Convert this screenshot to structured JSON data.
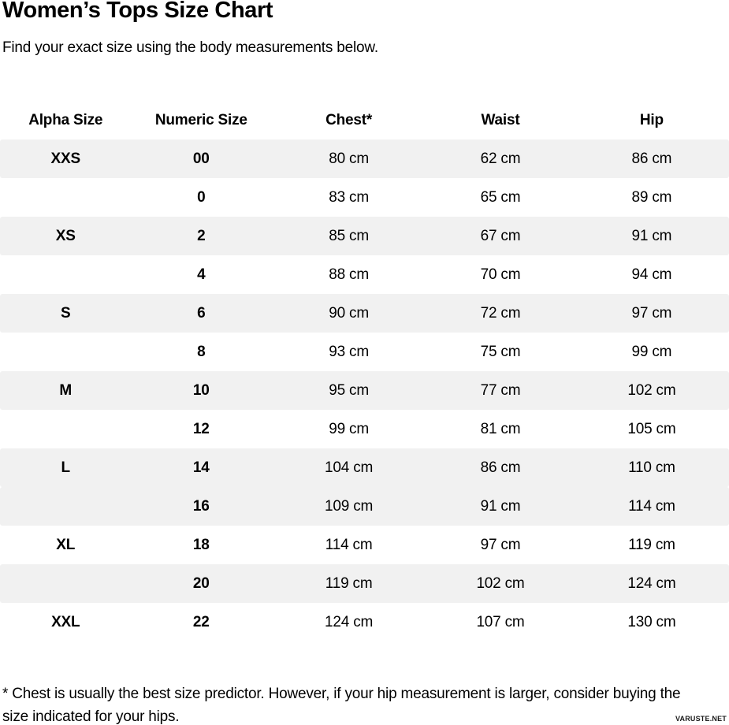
{
  "header": {
    "title": "Women’s Tops Size Chart",
    "subtitle": "Find your exact size using the body measurements below."
  },
  "size_chart": {
    "columns": [
      "Alpha Size",
      "Numeric Size",
      "Chest*",
      "Waist",
      "Hip"
    ],
    "rows": [
      {
        "alpha": "XXS",
        "numeric": "00",
        "chest": "80 cm",
        "waist": "62 cm",
        "hip": "86 cm",
        "shaded": true
      },
      {
        "alpha": "",
        "numeric": "0",
        "chest": "83 cm",
        "waist": "65 cm",
        "hip": "89 cm",
        "shaded": false
      },
      {
        "alpha": "XS",
        "numeric": "2",
        "chest": "85 cm",
        "waist": "67 cm",
        "hip": "91 cm",
        "shaded": true
      },
      {
        "alpha": "",
        "numeric": "4",
        "chest": "88 cm",
        "waist": "70 cm",
        "hip": "94 cm",
        "shaded": false
      },
      {
        "alpha": "S",
        "numeric": "6",
        "chest": "90 cm",
        "waist": "72 cm",
        "hip": "97 cm",
        "shaded": true
      },
      {
        "alpha": "",
        "numeric": "8",
        "chest": "93 cm",
        "waist": "75 cm",
        "hip": "99 cm",
        "shaded": false
      },
      {
        "alpha": "M",
        "numeric": "10",
        "chest": "95 cm",
        "waist": "77 cm",
        "hip": "102 cm",
        "shaded": true
      },
      {
        "alpha": "",
        "numeric": "12",
        "chest": "99 cm",
        "waist": "81 cm",
        "hip": "105 cm",
        "shaded": false
      },
      {
        "alpha": "L",
        "numeric": "14",
        "chest": "104 cm",
        "waist": "86 cm",
        "hip": "110 cm",
        "shaded": true
      },
      {
        "alpha": "",
        "numeric": "16",
        "chest": "109 cm",
        "waist": "91 cm",
        "hip": "114 cm",
        "shaded": true
      },
      {
        "alpha": "XL",
        "numeric": "18",
        "chest": "114 cm",
        "waist": "97 cm",
        "hip": "119 cm",
        "shaded": false
      },
      {
        "alpha": "",
        "numeric": "20",
        "chest": "119 cm",
        "waist": "102 cm",
        "hip": "124 cm",
        "shaded": true
      },
      {
        "alpha": "XXL",
        "numeric": "22",
        "chest": "124 cm",
        "waist": "107 cm",
        "hip": "130 cm",
        "shaded": false
      }
    ]
  },
  "footnote": {
    "line1": "* Chest is usually the best size predictor. However, if your hip measurement is larger, consider buying the",
    "line2": "size indicated for your hips."
  },
  "watermark": "VARUSTE.NET",
  "colors": {
    "background": "#ffffff",
    "text": "#000000",
    "shaded_row": "#f1f1f1"
  }
}
